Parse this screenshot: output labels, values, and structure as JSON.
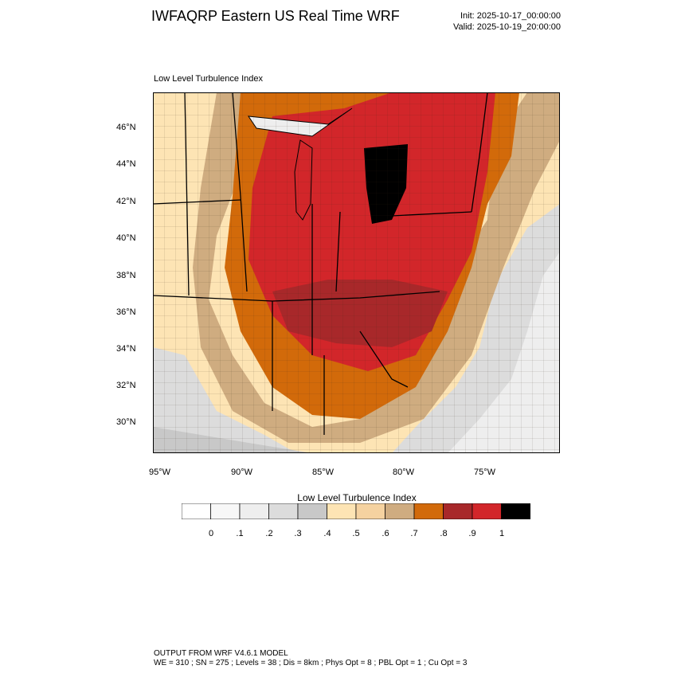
{
  "header": {
    "title": "IWFAQRP Eastern US Real Time WRF",
    "init": "Init: 2025-10-17_00:00:00",
    "valid": "Valid: 2025-10-19_20:00:00"
  },
  "map": {
    "label": "Low Level Turbulence Index",
    "lat_labels": [
      "46°N",
      "44°N",
      "42°N",
      "40°N",
      "38°N",
      "36°N",
      "34°N",
      "32°N",
      "30°N"
    ],
    "lon_labels": [
      "95°W",
      "90°W",
      "85°W",
      "80°W",
      "75°W"
    ]
  },
  "colorbar": {
    "title": "Low Level Turbulence Index",
    "colors": [
      "#ffffff",
      "#f7f7f7",
      "#eeeeee",
      "#dcdcdc",
      "#c8c8c8",
      "#fde4b4",
      "#f5d2a0",
      "#cfac80",
      "#d26a0a",
      "#a8282a",
      "#d2262a",
      "#000000"
    ],
    "tick_labels": [
      "0",
      ".1",
      ".2",
      ".3",
      ".4",
      ".5",
      ".6",
      ".7",
      ".8",
      ".9",
      "1"
    ]
  },
  "footer": {
    "line1": "OUTPUT FROM WRF V4.6.1 MODEL",
    "line2": "WE = 310 ; SN = 275 ; Levels = 38 ; Dis = 8km ; Phys Opt = 8 ; PBL Opt = 1 ; Cu Opt = 3"
  }
}
